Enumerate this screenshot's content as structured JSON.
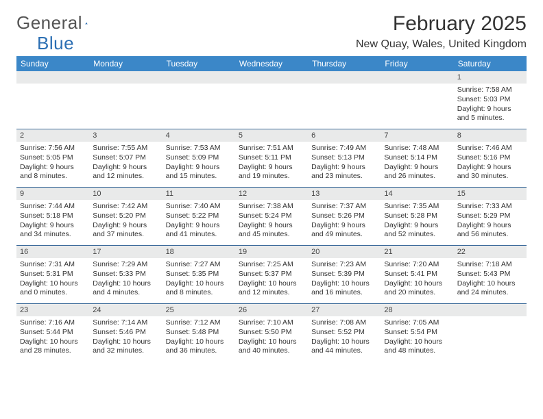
{
  "logo": {
    "word1": "General",
    "word2": "Blue"
  },
  "title": "February 2025",
  "location": "New Quay, Wales, United Kingdom",
  "colors": {
    "header_bg": "#3b87c8",
    "header_text": "#ffffff",
    "daynum_bg": "#e9eaea",
    "rule": "#3b6a9a",
    "logo_gray": "#555555",
    "logo_blue": "#2c6fb3",
    "body_text": "#333333"
  },
  "days_of_week": [
    "Sunday",
    "Monday",
    "Tuesday",
    "Wednesday",
    "Thursday",
    "Friday",
    "Saturday"
  ],
  "weeks": [
    [
      {
        "n": "",
        "sunrise": "",
        "sunset": "",
        "daylight": ""
      },
      {
        "n": "",
        "sunrise": "",
        "sunset": "",
        "daylight": ""
      },
      {
        "n": "",
        "sunrise": "",
        "sunset": "",
        "daylight": ""
      },
      {
        "n": "",
        "sunrise": "",
        "sunset": "",
        "daylight": ""
      },
      {
        "n": "",
        "sunrise": "",
        "sunset": "",
        "daylight": ""
      },
      {
        "n": "",
        "sunrise": "",
        "sunset": "",
        "daylight": ""
      },
      {
        "n": "1",
        "sunrise": "Sunrise: 7:58 AM",
        "sunset": "Sunset: 5:03 PM",
        "daylight": "Daylight: 9 hours and 5 minutes."
      }
    ],
    [
      {
        "n": "2",
        "sunrise": "Sunrise: 7:56 AM",
        "sunset": "Sunset: 5:05 PM",
        "daylight": "Daylight: 9 hours and 8 minutes."
      },
      {
        "n": "3",
        "sunrise": "Sunrise: 7:55 AM",
        "sunset": "Sunset: 5:07 PM",
        "daylight": "Daylight: 9 hours and 12 minutes."
      },
      {
        "n": "4",
        "sunrise": "Sunrise: 7:53 AM",
        "sunset": "Sunset: 5:09 PM",
        "daylight": "Daylight: 9 hours and 15 minutes."
      },
      {
        "n": "5",
        "sunrise": "Sunrise: 7:51 AM",
        "sunset": "Sunset: 5:11 PM",
        "daylight": "Daylight: 9 hours and 19 minutes."
      },
      {
        "n": "6",
        "sunrise": "Sunrise: 7:49 AM",
        "sunset": "Sunset: 5:13 PM",
        "daylight": "Daylight: 9 hours and 23 minutes."
      },
      {
        "n": "7",
        "sunrise": "Sunrise: 7:48 AM",
        "sunset": "Sunset: 5:14 PM",
        "daylight": "Daylight: 9 hours and 26 minutes."
      },
      {
        "n": "8",
        "sunrise": "Sunrise: 7:46 AM",
        "sunset": "Sunset: 5:16 PM",
        "daylight": "Daylight: 9 hours and 30 minutes."
      }
    ],
    [
      {
        "n": "9",
        "sunrise": "Sunrise: 7:44 AM",
        "sunset": "Sunset: 5:18 PM",
        "daylight": "Daylight: 9 hours and 34 minutes."
      },
      {
        "n": "10",
        "sunrise": "Sunrise: 7:42 AM",
        "sunset": "Sunset: 5:20 PM",
        "daylight": "Daylight: 9 hours and 37 minutes."
      },
      {
        "n": "11",
        "sunrise": "Sunrise: 7:40 AM",
        "sunset": "Sunset: 5:22 PM",
        "daylight": "Daylight: 9 hours and 41 minutes."
      },
      {
        "n": "12",
        "sunrise": "Sunrise: 7:38 AM",
        "sunset": "Sunset: 5:24 PM",
        "daylight": "Daylight: 9 hours and 45 minutes."
      },
      {
        "n": "13",
        "sunrise": "Sunrise: 7:37 AM",
        "sunset": "Sunset: 5:26 PM",
        "daylight": "Daylight: 9 hours and 49 minutes."
      },
      {
        "n": "14",
        "sunrise": "Sunrise: 7:35 AM",
        "sunset": "Sunset: 5:28 PM",
        "daylight": "Daylight: 9 hours and 52 minutes."
      },
      {
        "n": "15",
        "sunrise": "Sunrise: 7:33 AM",
        "sunset": "Sunset: 5:29 PM",
        "daylight": "Daylight: 9 hours and 56 minutes."
      }
    ],
    [
      {
        "n": "16",
        "sunrise": "Sunrise: 7:31 AM",
        "sunset": "Sunset: 5:31 PM",
        "daylight": "Daylight: 10 hours and 0 minutes."
      },
      {
        "n": "17",
        "sunrise": "Sunrise: 7:29 AM",
        "sunset": "Sunset: 5:33 PM",
        "daylight": "Daylight: 10 hours and 4 minutes."
      },
      {
        "n": "18",
        "sunrise": "Sunrise: 7:27 AM",
        "sunset": "Sunset: 5:35 PM",
        "daylight": "Daylight: 10 hours and 8 minutes."
      },
      {
        "n": "19",
        "sunrise": "Sunrise: 7:25 AM",
        "sunset": "Sunset: 5:37 PM",
        "daylight": "Daylight: 10 hours and 12 minutes."
      },
      {
        "n": "20",
        "sunrise": "Sunrise: 7:23 AM",
        "sunset": "Sunset: 5:39 PM",
        "daylight": "Daylight: 10 hours and 16 minutes."
      },
      {
        "n": "21",
        "sunrise": "Sunrise: 7:20 AM",
        "sunset": "Sunset: 5:41 PM",
        "daylight": "Daylight: 10 hours and 20 minutes."
      },
      {
        "n": "22",
        "sunrise": "Sunrise: 7:18 AM",
        "sunset": "Sunset: 5:43 PM",
        "daylight": "Daylight: 10 hours and 24 minutes."
      }
    ],
    [
      {
        "n": "23",
        "sunrise": "Sunrise: 7:16 AM",
        "sunset": "Sunset: 5:44 PM",
        "daylight": "Daylight: 10 hours and 28 minutes."
      },
      {
        "n": "24",
        "sunrise": "Sunrise: 7:14 AM",
        "sunset": "Sunset: 5:46 PM",
        "daylight": "Daylight: 10 hours and 32 minutes."
      },
      {
        "n": "25",
        "sunrise": "Sunrise: 7:12 AM",
        "sunset": "Sunset: 5:48 PM",
        "daylight": "Daylight: 10 hours and 36 minutes."
      },
      {
        "n": "26",
        "sunrise": "Sunrise: 7:10 AM",
        "sunset": "Sunset: 5:50 PM",
        "daylight": "Daylight: 10 hours and 40 minutes."
      },
      {
        "n": "27",
        "sunrise": "Sunrise: 7:08 AM",
        "sunset": "Sunset: 5:52 PM",
        "daylight": "Daylight: 10 hours and 44 minutes."
      },
      {
        "n": "28",
        "sunrise": "Sunrise: 7:05 AM",
        "sunset": "Sunset: 5:54 PM",
        "daylight": "Daylight: 10 hours and 48 minutes."
      },
      {
        "n": "",
        "sunrise": "",
        "sunset": "",
        "daylight": ""
      }
    ]
  ]
}
